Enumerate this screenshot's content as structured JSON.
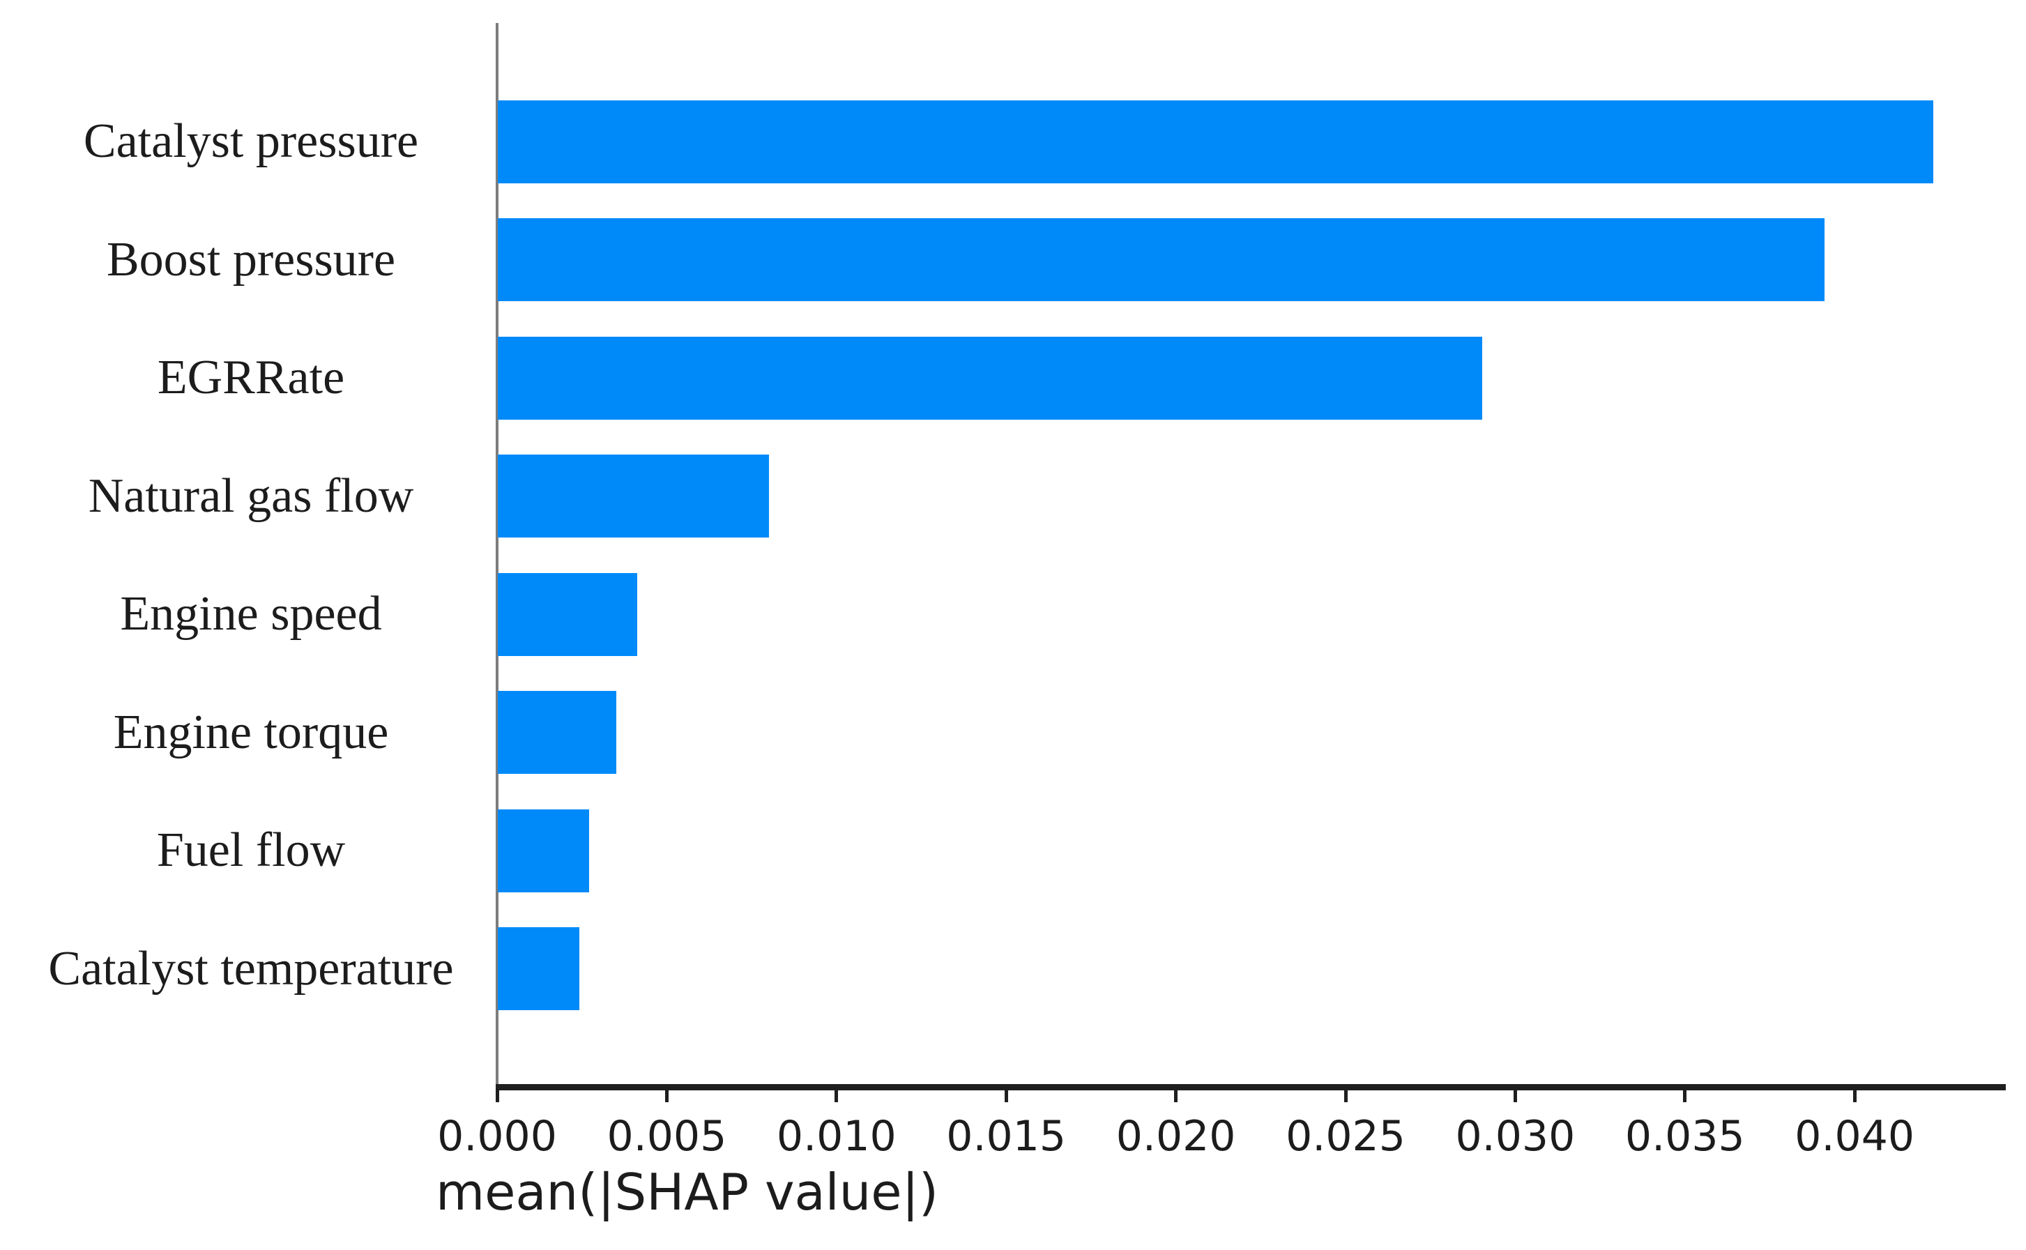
{
  "chart_data": {
    "type": "bar",
    "orientation": "horizontal",
    "title": "",
    "xlabel": "mean(|SHAP value|)",
    "ylabel": "",
    "categories": [
      "Catalyst pressure",
      "Boost pressure",
      "EGRRate",
      "Natural gas flow",
      "Engine speed",
      "Engine torque",
      "Fuel flow",
      "Catalyst temperature"
    ],
    "values": [
      0.0423,
      0.0391,
      0.029,
      0.008,
      0.0041,
      0.0035,
      0.0027,
      0.0024
    ],
    "x_ticks": [
      "0.000",
      "0.005",
      "0.010",
      "0.015",
      "0.020",
      "0.025",
      "0.030",
      "0.035",
      "0.040"
    ],
    "x_tick_values": [
      0.0,
      0.005,
      0.01,
      0.015,
      0.02,
      0.025,
      0.03,
      0.035,
      0.04
    ],
    "xlim": [
      0.0,
      0.0445
    ],
    "grid": false,
    "legend": null,
    "bar_color": "#008af9",
    "axis_line_color": "#1f1f1f",
    "spine_color": "#7d7d7d",
    "tick_color": "#1f1f1f",
    "text_color": "#1c1c1c",
    "background": "#ffffff"
  }
}
